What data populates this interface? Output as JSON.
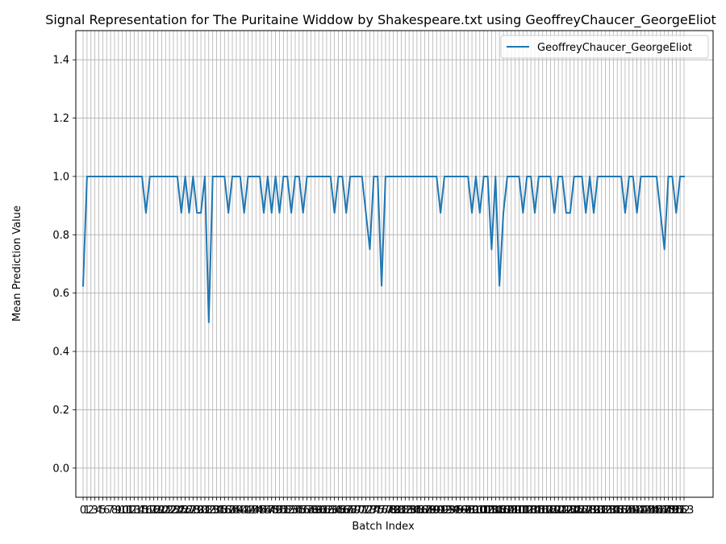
{
  "chart_data": {
    "type": "line",
    "title": "Signal Representation for The Puritaine Widdow by Shakespeare.txt using GeoffreyChaucer_GeorgeEliot",
    "xlabel": "Batch Index",
    "ylabel": "Mean Prediction Value",
    "ylim": [
      -0.1,
      1.5
    ],
    "yticks": [
      "0.0",
      "0.2",
      "0.4",
      "0.6",
      "0.8",
      "1.0",
      "1.2",
      "1.4"
    ],
    "grid": true,
    "legend_position": "top-right",
    "series": [
      {
        "name": "GeoffreyChaucer_GeorgeEliot",
        "color": "#1f77b4",
        "values": [
          0.625,
          1,
          1,
          1,
          1,
          1,
          1,
          1,
          1,
          1,
          1,
          1,
          1,
          1,
          1,
          1,
          0.875,
          1,
          1,
          1,
          1,
          1,
          1,
          1,
          1,
          0.875,
          1,
          0.875,
          1,
          0.875,
          0.875,
          1,
          0.5,
          1,
          1,
          1,
          1,
          0.875,
          1,
          1,
          1,
          0.875,
          1,
          1,
          1,
          1,
          0.875,
          1,
          0.875,
          1,
          0.875,
          1,
          1,
          0.875,
          1,
          1,
          0.875,
          1,
          1,
          1,
          1,
          1,
          1,
          1,
          0.875,
          1,
          1,
          0.875,
          1,
          1,
          1,
          1,
          0.875,
          0.75,
          1,
          1,
          0.625,
          1,
          1,
          1,
          1,
          1,
          1,
          1,
          1,
          1,
          1,
          1,
          1,
          1,
          1,
          0.875,
          1,
          1,
          1,
          1,
          1,
          1,
          1,
          0.875,
          1,
          0.875,
          1,
          1,
          0.75,
          1,
          0.625,
          0.875,
          1,
          1,
          1,
          1,
          0.875,
          1,
          1,
          0.875,
          1,
          1,
          1,
          1,
          0.875,
          1,
          1,
          0.875,
          0.875,
          1,
          1,
          1,
          0.875,
          1,
          0.875,
          1,
          1,
          1,
          1,
          1,
          1,
          1,
          0.875,
          1,
          1,
          0.875,
          1,
          1,
          1,
          1,
          1,
          0.875,
          0.75,
          1,
          1,
          0.875,
          1,
          1
        ]
      }
    ]
  }
}
